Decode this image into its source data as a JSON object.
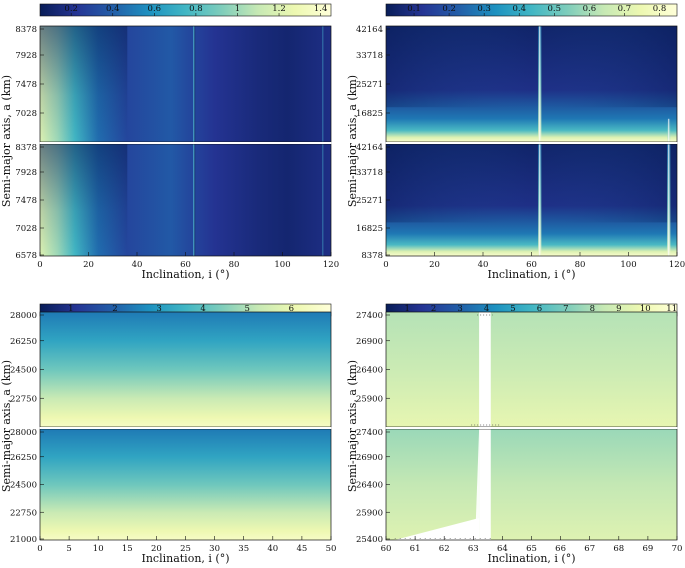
{
  "figure": {
    "panels": [
      {
        "id": "tl",
        "xlabel": "Inclination, i (°)",
        "ylabel": "Semi-major axis, a (km)",
        "colorbar_ticks": [
          "0.2",
          "0.4",
          "0.6",
          "0.8",
          "1",
          "1.2",
          "1.4"
        ],
        "x_ticks": [
          "0",
          "20",
          "40",
          "60",
          "80",
          "100",
          "120"
        ],
        "y_ticks_top": [
          "8378",
          "7928",
          "7478",
          "7028"
        ],
        "y_ticks_bottom": [
          "8378",
          "7928",
          "7478",
          "7028",
          "6578"
        ]
      },
      {
        "id": "tr",
        "xlabel": "Inclination, i (°)",
        "ylabel": "Semi-major axis, a (km)",
        "colorbar_ticks": [
          "0.1",
          "0.2",
          "0.3",
          "0.4",
          "0.5",
          "0.6",
          "0.7",
          "0.8"
        ],
        "x_ticks": [
          "0",
          "20",
          "40",
          "60",
          "80",
          "100",
          "120"
        ],
        "y_ticks_top": [
          "42164",
          "33718",
          "25271",
          "16825"
        ],
        "y_ticks_bottom": [
          "42164",
          "33718",
          "25271",
          "16825",
          "8378"
        ]
      },
      {
        "id": "bl",
        "xlabel": "Inclination, i (°)",
        "ylabel": "Semi-major axis, a (km)",
        "colorbar_ticks": [
          "1",
          "2",
          "3",
          "4",
          "5",
          "6"
        ],
        "x_ticks": [
          "0",
          "5",
          "10",
          "15",
          "20",
          "25",
          "30",
          "35",
          "40",
          "45",
          "50"
        ],
        "y_ticks_top": [
          "28000",
          "26250",
          "24500",
          "22750"
        ],
        "y_ticks_bottom": [
          "28000",
          "26250",
          "24500",
          "22750",
          "21000"
        ]
      },
      {
        "id": "br",
        "xlabel": "Inclination, i (°)",
        "ylabel": "Semi-major axis, a (km)",
        "colorbar_ticks": [
          "1",
          "2",
          "3",
          "4",
          "5",
          "6",
          "7",
          "8",
          "9",
          "10",
          "11"
        ],
        "x_ticks": [
          "60",
          "61",
          "62",
          "63",
          "64",
          "65",
          "66",
          "67",
          "68",
          "69",
          "70"
        ],
        "y_ticks_top": [
          "27400",
          "26900",
          "26400",
          "25900"
        ],
        "y_ticks_bottom": [
          "27400",
          "26900",
          "26400",
          "25900",
          "25400"
        ]
      }
    ]
  },
  "chart_data": [
    {
      "type": "heatmap",
      "title": "",
      "xlabel": "Inclination, i (°)",
      "ylabel": "Semi-major axis, a (km)",
      "xlim": [
        0,
        120
      ],
      "ylim": [
        6578,
        8378
      ],
      "colorbar": {
        "min": 0.05,
        "max": 1.45,
        "ticks": [
          0.2,
          0.4,
          0.6,
          0.8,
          1,
          1.2,
          1.4
        ],
        "colormap": "YlGnBu_r",
        "placement": "top"
      },
      "subplots": 2,
      "x_ticks": [
        0,
        20,
        40,
        60,
        80,
        100,
        120
      ],
      "y_ticks": [
        6578,
        7028,
        7478,
        7928,
        8378
      ],
      "features": {
        "high_region": "low inclination (0–25°)",
        "vertical_lines_at_inclination": [
          63.4,
          116.6
        ]
      }
    },
    {
      "type": "heatmap",
      "title": "",
      "xlabel": "Inclination, i (°)",
      "ylabel": "Semi-major axis, a (km)",
      "xlim": [
        0,
        120
      ],
      "ylim": [
        8378,
        42164
      ],
      "colorbar": {
        "min": 0.02,
        "max": 0.85,
        "ticks": [
          0.1,
          0.2,
          0.3,
          0.4,
          0.5,
          0.6,
          0.7,
          0.8
        ],
        "colormap": "YlGnBu_r",
        "placement": "top"
      },
      "subplots": 2,
      "x_ticks": [
        0,
        20,
        40,
        60,
        80,
        100,
        120
      ],
      "y_ticks": [
        8378,
        16825,
        25271,
        33718,
        42164
      ],
      "features": {
        "high_region": "low semi-major axis",
        "vertical_spikes_at_inclination": [
          63.4,
          116.6
        ]
      }
    },
    {
      "type": "heatmap",
      "title": "",
      "xlabel": "Inclination, i (°)",
      "ylabel": "Semi-major axis, a (km)",
      "xlim": [
        0,
        50
      ],
      "ylim": [
        21000,
        28000
      ],
      "colorbar": {
        "min": 0.3,
        "max": 6.9,
        "ticks": [
          1,
          2,
          3,
          4,
          5,
          6
        ],
        "colormap": "YlGnBu_r",
        "placement": "top"
      },
      "subplots": 2,
      "x_ticks": [
        0,
        5,
        10,
        15,
        20,
        25,
        30,
        35,
        40,
        45,
        50
      ],
      "y_ticks": [
        21000,
        22750,
        24500,
        26250,
        28000
      ],
      "features": {
        "gradient": "value increases as semi-major axis decreases"
      }
    },
    {
      "type": "heatmap",
      "title": "",
      "xlabel": "Inclination, i (°)",
      "ylabel": "Semi-major axis, a (km)",
      "xlim": [
        60,
        70
      ],
      "ylim": [
        25400,
        27400
      ],
      "colorbar": {
        "min": 0.2,
        "max": 11.2,
        "ticks": [
          1,
          2,
          3,
          4,
          5,
          6,
          7,
          8,
          9,
          10,
          11
        ],
        "colormap": "YlGnBu_r",
        "placement": "top"
      },
      "subplots": 2,
      "x_ticks": [
        60,
        61,
        62,
        63,
        64,
        65,
        66,
        67,
        68,
        69,
        70
      ],
      "y_ticks": [
        25400,
        25900,
        26400,
        26900,
        27400
      ],
      "features": {
        "white_band_inclination": [
          63.2,
          63.6
        ],
        "white_region_bottom_panel_from": 60.3
      }
    }
  ]
}
